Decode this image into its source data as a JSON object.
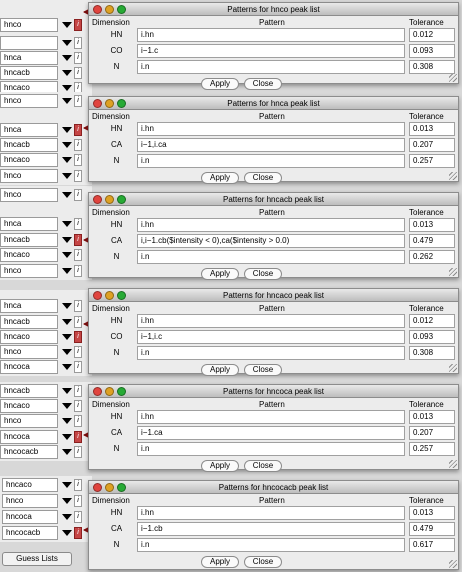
{
  "colors": {
    "accent_red": "#c54545",
    "arrow_red": "#a81e1e",
    "close_red": "#e0443e",
    "min_yellow": "#dea123",
    "zoom_green": "#27aa35"
  },
  "icons": {
    "info": "info-icon",
    "menu": "chevron-down-icon"
  },
  "guess_lists_label": "Guess Lists",
  "strips": [
    {
      "rows": [
        {
          "label": "hnco",
          "active": true
        },
        {
          "label": "",
          "active": false
        },
        {
          "label": "hnca",
          "active": false
        },
        {
          "label": "hncacb",
          "active": false
        },
        {
          "label": "hncaco",
          "active": false
        }
      ]
    },
    {
      "rows": [
        {
          "label": "hnco",
          "active": false
        },
        {
          "label": "hnca",
          "active": true
        },
        {
          "label": "hncacb",
          "active": false
        },
        {
          "label": "hncaco",
          "active": false
        },
        {
          "label": "hnco",
          "active": false
        }
      ]
    },
    {
      "rows": [
        {
          "label": "hnco",
          "active": false
        },
        {
          "label": "hnca",
          "active": false
        },
        {
          "label": "hncacb",
          "active": true
        },
        {
          "label": "hncaco",
          "active": false
        },
        {
          "label": "hnco",
          "active": false
        }
      ]
    },
    {
      "rows": [
        {
          "label": "hnca",
          "active": false
        },
        {
          "label": "hncacb",
          "active": false
        },
        {
          "label": "hncaco",
          "active": true
        },
        {
          "label": "hnco",
          "active": false
        },
        {
          "label": "hncoca",
          "active": false
        }
      ]
    },
    {
      "rows": [
        {
          "label": "hncacb",
          "active": false
        },
        {
          "label": "hncaco",
          "active": false
        },
        {
          "label": "hnco",
          "active": false
        },
        {
          "label": "hncoca",
          "active": true
        },
        {
          "label": "hncocacb",
          "active": false
        }
      ]
    },
    {
      "rows": [
        {
          "label": "hncaco",
          "active": false
        },
        {
          "label": "hnco",
          "active": false
        },
        {
          "label": "hncoca",
          "active": false
        },
        {
          "label": "hncocacb",
          "active": true
        }
      ]
    }
  ],
  "windows": [
    {
      "title": "Patterns for hnco peak list",
      "h_dim": "Dimension",
      "h_pat": "Pattern",
      "h_tol": "Tolerance",
      "rows": [
        {
          "dim": "HN",
          "pattern": "i.hn",
          "tol": "0.012"
        },
        {
          "dim": "CO",
          "pattern": "i−1.c",
          "tol": "0.093"
        },
        {
          "dim": "N",
          "pattern": "i.n",
          "tol": "0.308"
        }
      ],
      "apply": "Apply",
      "close": "Close"
    },
    {
      "title": "Patterns for hnca peak list",
      "h_dim": "Dimension",
      "h_pat": "Pattern",
      "h_tol": "Tolerance",
      "rows": [
        {
          "dim": "HN",
          "pattern": "i.hn",
          "tol": "0.013"
        },
        {
          "dim": "CA",
          "pattern": "i−1,i.ca",
          "tol": "0.207"
        },
        {
          "dim": "N",
          "pattern": "i.n",
          "tol": "0.257"
        }
      ],
      "apply": "Apply",
      "close": "Close"
    },
    {
      "title": "Patterns for hncacb peak list",
      "h_dim": "Dimension",
      "h_pat": "Pattern",
      "h_tol": "Tolerance",
      "rows": [
        {
          "dim": "HN",
          "pattern": "i.hn",
          "tol": "0.013"
        },
        {
          "dim": "CA",
          "pattern": "i,i−1.cb($intensity < 0),ca($intensity > 0.0)",
          "tol": "0.479"
        },
        {
          "dim": "N",
          "pattern": "i.n",
          "tol": "0.262"
        }
      ],
      "apply": "Apply",
      "close": "Close"
    },
    {
      "title": "Patterns for hncaco peak list",
      "h_dim": "Dimension",
      "h_pat": "Pattern",
      "h_tol": "Tolerance",
      "rows": [
        {
          "dim": "HN",
          "pattern": "i.hn",
          "tol": "0.012"
        },
        {
          "dim": "CO",
          "pattern": "i−1,i.c",
          "tol": "0.093"
        },
        {
          "dim": "N",
          "pattern": "i.n",
          "tol": "0.308"
        }
      ],
      "apply": "Apply",
      "close": "Close"
    },
    {
      "title": "Patterns for hncoca peak list",
      "h_dim": "Dimension",
      "h_pat": "Pattern",
      "h_tol": "Tolerance",
      "rows": [
        {
          "dim": "HN",
          "pattern": "i.hn",
          "tol": "0.013"
        },
        {
          "dim": "CA",
          "pattern": "i−1.ca",
          "tol": "0.207"
        },
        {
          "dim": "N",
          "pattern": "i.n",
          "tol": "0.257"
        }
      ],
      "apply": "Apply",
      "close": "Close"
    },
    {
      "title": "Patterns for hncocacb peak list",
      "h_dim": "Dimension",
      "h_pat": "Pattern",
      "h_tol": "Tolerance",
      "rows": [
        {
          "dim": "HN",
          "pattern": "i.hn",
          "tol": "0.013"
        },
        {
          "dim": "CA",
          "pattern": "i−1.cb",
          "tol": "0.479"
        },
        {
          "dim": "N",
          "pattern": "i.n",
          "tol": "0.617"
        }
      ],
      "apply": "Apply",
      "close": "Close"
    }
  ]
}
